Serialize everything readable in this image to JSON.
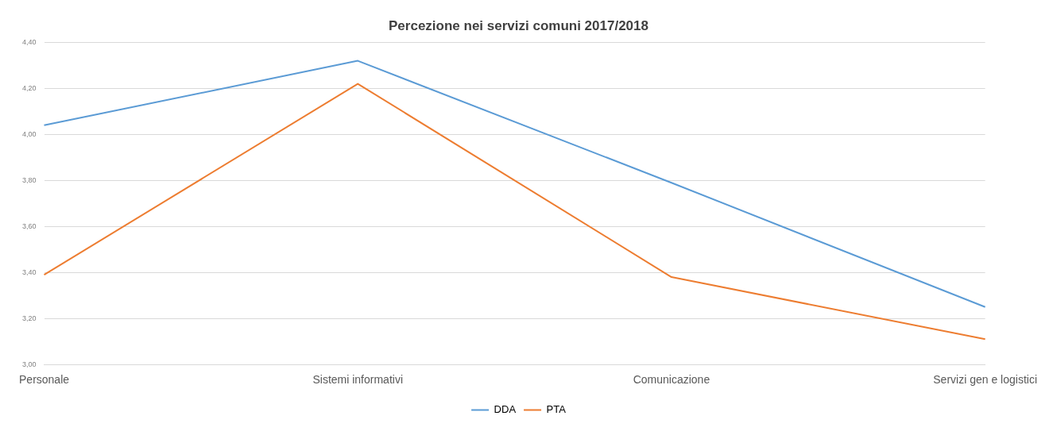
{
  "chart_data": {
    "type": "line",
    "title": "Percezione nei servizi comuni 2017/2018",
    "categories": [
      "Personale",
      "Sistemi informativi",
      "Comunicazione",
      "Servizi gen e logistici"
    ],
    "series": [
      {
        "name": "DDA",
        "color": "#5b9bd5",
        "values": [
          4.04,
          4.32,
          3.79,
          3.25
        ]
      },
      {
        "name": "PTA",
        "color": "#ed7d31",
        "values": [
          3.39,
          4.22,
          3.38,
          3.11
        ]
      }
    ],
    "ylim": [
      3,
      4.4
    ],
    "yticks": [
      {
        "value": 3,
        "label": "3,00"
      },
      {
        "value": 3.2,
        "label": "3,20"
      },
      {
        "value": 3.4,
        "label": "3,40"
      },
      {
        "value": 3.6,
        "label": "3,60"
      },
      {
        "value": 3.8,
        "label": "3,80"
      },
      {
        "value": 4,
        "label": "4,00"
      },
      {
        "value": 4.2,
        "label": "4,20"
      },
      {
        "value": 4.4,
        "label": "4,40"
      }
    ],
    "grid": "y",
    "legend": "bottom",
    "marker": "none",
    "line_style": "solid"
  }
}
